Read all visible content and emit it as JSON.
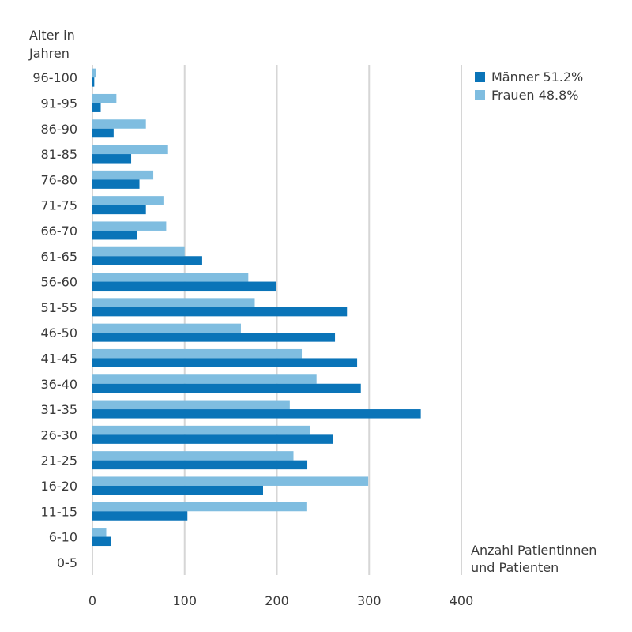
{
  "chart_data": {
    "type": "bar",
    "orientation": "horizontal",
    "ylabel_lines": [
      "Alter in",
      "Jahren"
    ],
    "xlabel_lines": [
      "Anzahl Patientinnen",
      "und Patienten"
    ],
    "categories": [
      "0-5",
      "6-10",
      "11-15",
      "16-20",
      "21-25",
      "26-30",
      "31-35",
      "36-40",
      "41-45",
      "46-50",
      "51-55",
      "56-60",
      "61-65",
      "66-70",
      "71-75",
      "76-80",
      "81-85",
      "86-90",
      "91-95",
      "96-100"
    ],
    "series": [
      {
        "name": "Männer 51.2%",
        "color": "#0a74b8",
        "values": [
          0,
          20,
          103,
          185,
          233,
          261,
          356,
          291,
          287,
          263,
          276,
          199,
          119,
          48,
          58,
          51,
          42,
          23,
          9,
          2
        ]
      },
      {
        "name": "Frauen 48.8%",
        "color": "#7fbde0",
        "values": [
          0,
          15,
          232,
          299,
          218,
          236,
          214,
          243,
          227,
          161,
          176,
          169,
          100,
          80,
          77,
          66,
          82,
          58,
          26,
          4
        ]
      }
    ],
    "xlim": [
      0,
      400
    ],
    "xticks": [
      0,
      100,
      200,
      300,
      400
    ],
    "grid": true,
    "legend_position": "top-right"
  }
}
